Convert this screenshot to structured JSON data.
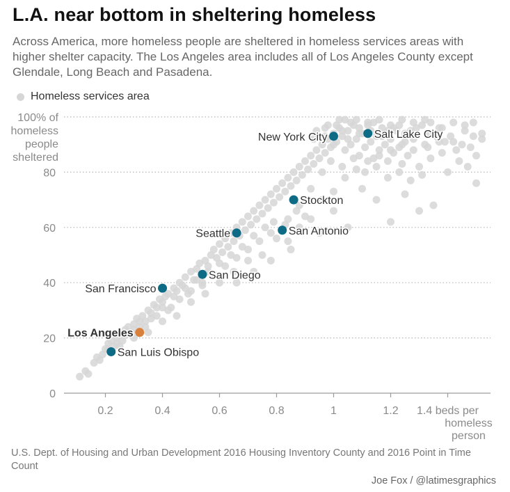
{
  "title": "L.A. near bottom in sheltering homeless",
  "subtitle": "Across America, more homeless people are sheltered in homeless services areas with higher shelter capacity. The Los Angeles area includes all of Los Angeles County except Glendale, Long Beach and Pasadena.",
  "legend_label": "Homeless services area",
  "source": "U.S. Dept. of Housing and Urban Development 2016 Housing Inventory County and 2016 Point in Time Count",
  "credit": "Joe Fox / @latimesgraphics",
  "colors": {
    "background_dot": "#d6d6d6",
    "highlight": "#0e6b85",
    "los_angeles": "#d9813c",
    "grid": "#b5b5b5",
    "axis_text": "#8a8a8a"
  },
  "chart_data": {
    "type": "scatter",
    "xlim": [
      0.05,
      1.55
    ],
    "ylim": [
      0,
      100
    ],
    "x_ticks": [
      {
        "value": 0.2,
        "label": "0.2"
      },
      {
        "value": 0.4,
        "label": "0.4"
      },
      {
        "value": 0.6,
        "label": "0.6"
      },
      {
        "value": 0.8,
        "label": "0.8"
      },
      {
        "value": 1.0,
        "label": "1"
      },
      {
        "value": 1.2,
        "label": "1.2"
      },
      {
        "value": 1.4,
        "label": "1.4 beds per"
      }
    ],
    "x_axis_label_lines": [
      "homeless",
      "person"
    ],
    "y_ticks": [
      {
        "value": 0,
        "label": "0"
      },
      {
        "value": 20,
        "label": "20"
      },
      {
        "value": 40,
        "label": "40"
      },
      {
        "value": 60,
        "label": "60"
      },
      {
        "value": 80,
        "label": "80"
      }
    ],
    "y_top_label_lines": [
      "100% of",
      "homeless",
      "people",
      "sheltered"
    ],
    "grid": "horizontal dotted",
    "highlighted": [
      {
        "name": "New York City",
        "x": 1.0,
        "y": 93,
        "label_side": "left",
        "color": "#0e6b85",
        "bold": false
      },
      {
        "name": "Salt Lake City",
        "x": 1.12,
        "y": 94,
        "label_side": "right",
        "color": "#0e6b85",
        "bold": false
      },
      {
        "name": "Stockton",
        "x": 0.86,
        "y": 70,
        "label_side": "right",
        "color": "#0e6b85",
        "bold": false
      },
      {
        "name": "Seattle",
        "x": 0.66,
        "y": 58,
        "label_side": "left",
        "color": "#0e6b85",
        "bold": false
      },
      {
        "name": "San Antonio",
        "x": 0.82,
        "y": 59,
        "label_side": "right",
        "color": "#0e6b85",
        "bold": false
      },
      {
        "name": "San Diego",
        "x": 0.54,
        "y": 43,
        "label_side": "right",
        "color": "#0e6b85",
        "bold": false
      },
      {
        "name": "San Francisco",
        "x": 0.4,
        "y": 38,
        "label_side": "left",
        "color": "#0e6b85",
        "bold": false
      },
      {
        "name": "Los Angeles",
        "x": 0.32,
        "y": 22,
        "label_side": "left",
        "color": "#d9813c",
        "bold": true
      },
      {
        "name": "San Luis Obispo",
        "x": 0.22,
        "y": 15,
        "label_side": "right",
        "color": "#0e6b85",
        "bold": false
      }
    ],
    "background_points": [
      [
        0.11,
        6
      ],
      [
        0.13,
        8
      ],
      [
        0.14,
        7
      ],
      [
        0.16,
        11
      ],
      [
        0.17,
        13
      ],
      [
        0.19,
        14
      ],
      [
        0.2,
        16
      ],
      [
        0.21,
        18
      ],
      [
        0.22,
        19
      ],
      [
        0.23,
        17
      ],
      [
        0.24,
        20
      ],
      [
        0.25,
        21
      ],
      [
        0.26,
        19
      ],
      [
        0.27,
        23
      ],
      [
        0.28,
        24
      ],
      [
        0.29,
        22
      ],
      [
        0.3,
        25
      ],
      [
        0.31,
        27
      ],
      [
        0.32,
        26
      ],
      [
        0.33,
        28
      ],
      [
        0.34,
        24
      ],
      [
        0.35,
        30
      ],
      [
        0.36,
        29
      ],
      [
        0.37,
        32
      ],
      [
        0.38,
        31
      ],
      [
        0.39,
        34
      ],
      [
        0.4,
        33
      ],
      [
        0.41,
        35
      ],
      [
        0.42,
        36
      ],
      [
        0.43,
        31
      ],
      [
        0.44,
        38
      ],
      [
        0.45,
        37
      ],
      [
        0.46,
        40
      ],
      [
        0.47,
        39
      ],
      [
        0.48,
        42
      ],
      [
        0.49,
        36
      ],
      [
        0.5,
        44
      ],
      [
        0.51,
        41
      ],
      [
        0.52,
        45
      ],
      [
        0.53,
        47
      ],
      [
        0.54,
        40
      ],
      [
        0.55,
        48
      ],
      [
        0.56,
        46
      ],
      [
        0.57,
        50
      ],
      [
        0.58,
        52
      ],
      [
        0.59,
        49
      ],
      [
        0.6,
        54
      ],
      [
        0.61,
        51
      ],
      [
        0.62,
        56
      ],
      [
        0.63,
        53
      ],
      [
        0.64,
        58
      ],
      [
        0.65,
        55
      ],
      [
        0.66,
        60
      ],
      [
        0.67,
        57
      ],
      [
        0.68,
        62
      ],
      [
        0.69,
        59
      ],
      [
        0.7,
        64
      ],
      [
        0.71,
        61
      ],
      [
        0.72,
        66
      ],
      [
        0.73,
        63
      ],
      [
        0.74,
        68
      ],
      [
        0.75,
        65
      ],
      [
        0.76,
        70
      ],
      [
        0.77,
        67
      ],
      [
        0.78,
        72
      ],
      [
        0.79,
        69
      ],
      [
        0.8,
        74
      ],
      [
        0.81,
        71
      ],
      [
        0.82,
        76
      ],
      [
        0.83,
        73
      ],
      [
        0.84,
        78
      ],
      [
        0.85,
        75
      ],
      [
        0.86,
        80
      ],
      [
        0.87,
        77
      ],
      [
        0.88,
        82
      ],
      [
        0.89,
        79
      ],
      [
        0.9,
        84
      ],
      [
        0.91,
        81
      ],
      [
        0.92,
        86
      ],
      [
        0.93,
        83
      ],
      [
        0.94,
        88
      ],
      [
        0.95,
        85
      ],
      [
        0.96,
        90
      ],
      [
        0.97,
        87
      ],
      [
        0.98,
        92
      ],
      [
        0.99,
        89
      ],
      [
        1.0,
        94
      ],
      [
        1.01,
        91
      ],
      [
        1.02,
        96
      ],
      [
        1.03,
        93
      ],
      [
        1.04,
        88
      ],
      [
        1.05,
        95
      ],
      [
        1.06,
        90
      ],
      [
        1.07,
        97
      ],
      [
        1.08,
        92
      ],
      [
        1.09,
        86
      ],
      [
        1.1,
        94
      ],
      [
        1.11,
        89
      ],
      [
        1.12,
        97
      ],
      [
        1.13,
        91
      ],
      [
        1.14,
        85
      ],
      [
        1.15,
        93
      ],
      [
        1.16,
        88
      ],
      [
        1.17,
        96
      ],
      [
        1.18,
        90
      ],
      [
        1.19,
        84
      ],
      [
        1.2,
        92
      ],
      [
        1.21,
        87
      ],
      [
        1.22,
        95
      ],
      [
        1.23,
        89
      ],
      [
        1.24,
        83
      ],
      [
        1.25,
        91
      ],
      [
        1.26,
        86
      ],
      [
        1.27,
        94
      ],
      [
        1.28,
        88
      ],
      [
        1.3,
        82
      ],
      [
        1.32,
        90
      ],
      [
        1.34,
        85
      ],
      [
        1.36,
        93
      ],
      [
        1.38,
        87
      ],
      [
        1.4,
        80
      ],
      [
        1.42,
        91
      ],
      [
        1.44,
        84
      ],
      [
        1.46,
        95
      ],
      [
        1.48,
        89
      ],
      [
        1.5,
        76
      ],
      [
        1.52,
        92
      ],
      [
        1.35,
        68
      ],
      [
        1.3,
        66
      ],
      [
        1.25,
        72
      ],
      [
        1.2,
        62
      ],
      [
        1.15,
        70
      ],
      [
        1.1,
        74
      ],
      [
        1.05,
        60
      ],
      [
        1.0,
        66
      ],
      [
        0.95,
        58
      ],
      [
        0.9,
        64
      ],
      [
        0.85,
        52
      ],
      [
        0.8,
        56
      ],
      [
        0.75,
        50
      ],
      [
        0.7,
        48
      ],
      [
        0.65,
        44
      ],
      [
        0.6,
        40
      ],
      [
        0.55,
        36
      ],
      [
        0.5,
        33
      ],
      [
        0.45,
        28
      ],
      [
        0.4,
        26
      ],
      [
        0.35,
        22
      ],
      [
        0.3,
        20
      ],
      [
        0.25,
        17
      ],
      [
        0.98,
        97
      ],
      [
        1.02,
        99
      ],
      [
        1.06,
        98
      ],
      [
        1.08,
        99
      ],
      [
        1.12,
        98
      ],
      [
        1.16,
        99
      ],
      [
        1.2,
        97
      ],
      [
        1.24,
        99
      ],
      [
        1.28,
        98
      ],
      [
        1.32,
        99
      ],
      [
        0.94,
        95
      ],
      [
        0.97,
        96
      ],
      [
        1.01,
        97
      ],
      [
        1.04,
        99
      ],
      [
        1.09,
        96
      ],
      [
        1.14,
        98
      ],
      [
        1.19,
        95
      ],
      [
        1.23,
        97
      ],
      [
        1.27,
        95
      ],
      [
        1.31,
        97
      ],
      [
        1.34,
        98
      ],
      [
        1.38,
        96
      ],
      [
        1.42,
        98
      ],
      [
        1.46,
        97
      ],
      [
        1.49,
        98
      ],
      [
        1.52,
        94
      ],
      [
        1.5,
        86
      ],
      [
        1.47,
        82
      ],
      [
        1.43,
        88
      ],
      [
        1.39,
        91
      ],
      [
        0.92,
        74
      ],
      [
        0.88,
        68
      ],
      [
        0.84,
        63
      ],
      [
        0.78,
        58
      ],
      [
        0.74,
        55
      ],
      [
        0.7,
        52
      ],
      [
        0.66,
        49
      ],
      [
        0.62,
        46
      ],
      [
        0.58,
        43
      ],
      [
        0.54,
        39
      ],
      [
        0.5,
        37
      ],
      [
        0.46,
        34
      ],
      [
        0.42,
        30
      ],
      [
        0.38,
        28
      ],
      [
        0.34,
        26
      ],
      [
        0.3,
        23
      ],
      [
        0.27,
        21
      ],
      [
        0.24,
        18
      ],
      [
        0.21,
        16
      ],
      [
        0.18,
        12
      ],
      [
        0.96,
        80
      ],
      [
        0.99,
        84
      ],
      [
        1.03,
        82
      ],
      [
        1.07,
        85
      ],
      [
        1.11,
        80
      ],
      [
        1.15,
        82
      ],
      [
        1.19,
        78
      ],
      [
        1.23,
        80
      ],
      [
        1.27,
        77
      ],
      [
        1.31,
        79
      ],
      [
        0.9,
        70
      ],
      [
        0.87,
        66
      ],
      [
        0.83,
        61
      ],
      [
        0.79,
        62
      ],
      [
        0.76,
        60
      ],
      [
        0.72,
        57
      ],
      [
        0.68,
        53
      ],
      [
        0.64,
        50
      ],
      [
        0.6,
        47
      ],
      [
        0.56,
        44
      ],
      [
        0.52,
        41
      ],
      [
        0.48,
        38
      ],
      [
        0.44,
        35
      ],
      [
        0.4,
        31
      ],
      [
        0.36,
        27
      ],
      [
        0.32,
        24
      ],
      [
        0.28,
        22
      ],
      [
        0.93,
        92
      ],
      [
        0.97,
        93
      ],
      [
        1.0,
        90
      ],
      [
        1.03,
        95
      ],
      [
        1.05,
        92
      ],
      [
        1.09,
        94
      ],
      [
        1.13,
        95
      ],
      [
        1.17,
        93
      ],
      [
        1.21,
        96
      ],
      [
        1.25,
        94
      ],
      [
        1.29,
        96
      ],
      [
        1.33,
        94
      ],
      [
        1.37,
        96
      ],
      [
        0.66,
        40
      ],
      [
        0.72,
        44
      ],
      [
        0.78,
        48
      ],
      [
        0.84,
        55
      ],
      [
        0.88,
        60
      ],
      [
        0.92,
        63
      ],
      [
        0.96,
        70
      ],
      [
        1.0,
        73
      ],
      [
        1.04,
        78
      ],
      [
        1.08,
        81
      ],
      [
        1.12,
        84
      ],
      [
        1.16,
        86
      ],
      [
        1.2,
        88
      ],
      [
        1.24,
        90
      ],
      [
        1.28,
        92
      ],
      [
        1.33,
        89
      ],
      [
        1.37,
        91
      ],
      [
        1.41,
        93
      ],
      [
        1.45,
        90
      ],
      [
        1.49,
        93
      ]
    ]
  }
}
